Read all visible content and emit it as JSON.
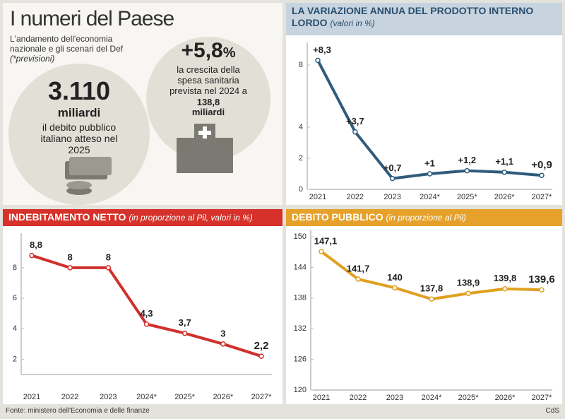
{
  "header": {
    "title": "I numeri del Paese",
    "subtitle": "L'andamento dell'economia nazionale e gli scenari del Def",
    "note": "(*previsioni)"
  },
  "stats": [
    {
      "value": "3.110",
      "unit": "miliardi",
      "text": "il debito pubblico italiano atteso nel 2025"
    },
    {
      "value": "+5,8",
      "unit": "%",
      "text": "la crescita della spesa sanitaria prevista nel 2024 a",
      "extra": "138,8 miliardi"
    }
  ],
  "chart_data": [
    {
      "type": "line",
      "title": "LA VARIAZIONE ANNUA DEL PRODOTTO INTERNO LORDO",
      "subtitle": "(valori in %)",
      "categories": [
        "2021",
        "2022",
        "2023",
        "2024*",
        "2025*",
        "2026*",
        "2027*"
      ],
      "series": [
        {
          "color": "#2f5b7c",
          "values": [
            8.3,
            3.7,
            0.7,
            1,
            1.2,
            1.1,
            0.9
          ],
          "value_labels": [
            "+8,3",
            "+3,7",
            "+0,7",
            "+1",
            "+1,2",
            "+1,1",
            "+0,9"
          ]
        }
      ],
      "ylim": [
        0,
        9
      ],
      "yticks": [
        0,
        2,
        4,
        8
      ],
      "grid": false
    },
    {
      "type": "line",
      "title": "INDEBITAMENTO NETTO",
      "subtitle": "(in proporzione al Pil, valori in %)",
      "categories": [
        "2021",
        "2022",
        "2023",
        "2024*",
        "2025*",
        "2026*",
        "2027*"
      ],
      "series": [
        {
          "color": "#d0302b",
          "values": [
            8.8,
            8,
            8,
            4.3,
            3.7,
            3,
            2.2
          ],
          "value_labels": [
            "8,8",
            "8",
            "8",
            "4,3",
            "3,7",
            "3",
            "2,2"
          ]
        }
      ],
      "ylim": [
        1,
        9.8
      ],
      "yticks": [
        2,
        4,
        6,
        8
      ],
      "grid": false
    },
    {
      "type": "line",
      "title": "DEBITO PUBBLICO",
      "subtitle": "(in proporzione al Pil)",
      "categories": [
        "2021",
        "2022",
        "2023",
        "2024*",
        "2025*",
        "2026*",
        "2027*"
      ],
      "series": [
        {
          "color": "#e0a020",
          "values": [
            147.1,
            141.7,
            140,
            137.8,
            138.9,
            139.8,
            139.6
          ],
          "value_labels": [
            "147,1",
            "141,7",
            "140",
            "137,8",
            "138,9",
            "139,8",
            "139,6"
          ]
        }
      ],
      "ylim": [
        120,
        150
      ],
      "yticks": [
        120,
        126,
        132,
        138,
        144,
        150
      ],
      "grid": false
    }
  ],
  "footer": {
    "source": "Fonte: ministero dell'Economia e delle finanze",
    "credit": "CdS"
  }
}
